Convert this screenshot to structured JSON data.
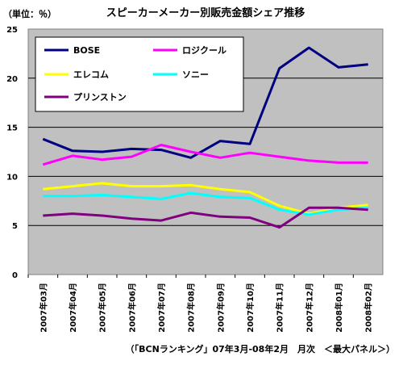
{
  "chart_data": {
    "type": "line",
    "title": "スピーカーメーカー別販売金額シェア推移",
    "ylabel": "（単位：％）",
    "xlabel": "",
    "footnote": "（「BCNランキング」07年3月-08年2月　月次　＜最大パネル＞）",
    "ylim": [
      0,
      25
    ],
    "yticks": [
      "0",
      "5",
      "10",
      "15",
      "20",
      "25"
    ],
    "grid": true,
    "legend_position": "top-left inside",
    "background_color": "#c0c0c0",
    "categories": [
      "2007年03月",
      "2007年04月",
      "2007年05月",
      "2007年06月",
      "2007年07月",
      "2007年08月",
      "2007年09月",
      "2007年10月",
      "2007年11月",
      "2007年12月",
      "2008年01月",
      "2008年02月"
    ],
    "series": [
      {
        "name": "BOSE",
        "color": "#000080",
        "values": [
          13.8,
          12.6,
          12.5,
          12.8,
          12.7,
          11.9,
          13.6,
          13.3,
          21.0,
          23.1,
          21.1,
          21.4
        ]
      },
      {
        "name": "ロジクール",
        "color": "#ff00ff",
        "values": [
          11.2,
          12.1,
          11.7,
          12.0,
          13.2,
          12.5,
          11.9,
          12.4,
          12.0,
          11.6,
          11.4,
          11.4
        ]
      },
      {
        "name": "エレコム",
        "color": "#ffff00",
        "values": [
          8.7,
          9.0,
          9.3,
          9.0,
          9.0,
          9.1,
          8.7,
          8.4,
          7.0,
          6.2,
          6.8,
          7.1
        ]
      },
      {
        "name": "ソニー",
        "color": "#00ffff",
        "values": [
          8.0,
          8.0,
          8.1,
          7.9,
          7.7,
          8.3,
          7.9,
          7.8,
          6.6,
          6.1,
          6.6,
          6.8
        ]
      },
      {
        "name": "プリンストン",
        "color": "#800080",
        "values": [
          6.0,
          6.2,
          6.0,
          5.7,
          5.5,
          6.3,
          5.9,
          5.8,
          4.8,
          6.8,
          6.8,
          6.6
        ]
      }
    ]
  }
}
